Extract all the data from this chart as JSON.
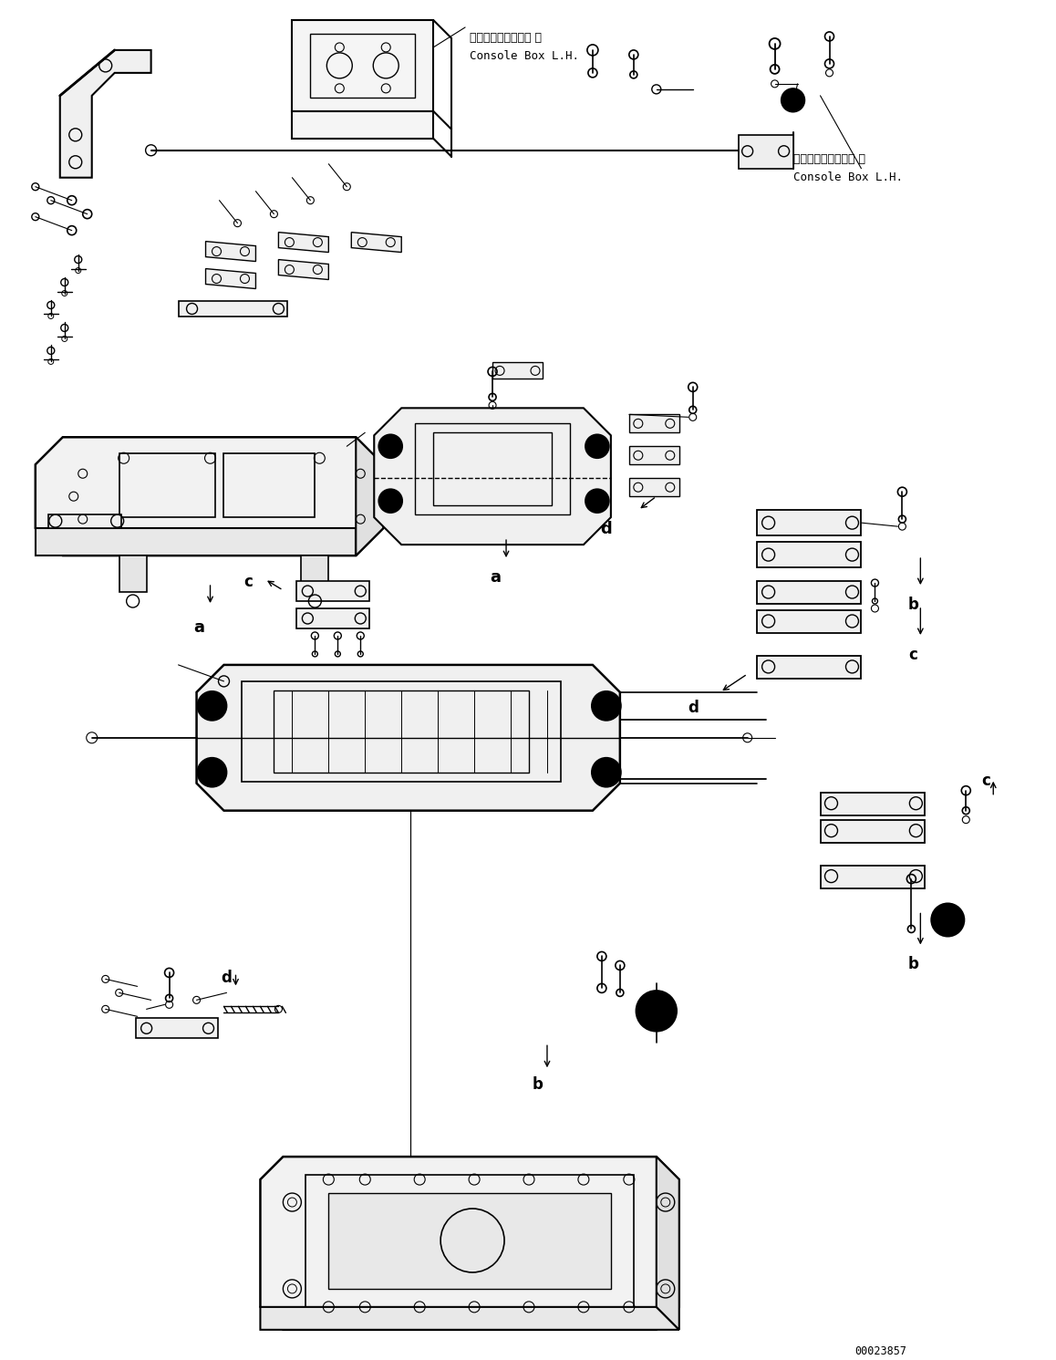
{
  "background_color": "#ffffff",
  "figure_width": 11.58,
  "figure_height": 14.91,
  "dpi": 100,
  "doc_number": "00023857",
  "label_top1_jp": "コンソールボックス 左",
  "label_top1_en": "Console Box L.H.",
  "label_top2_jp": "コンソールボックス 左",
  "label_top2_en": "Console Box L.H.",
  "label_a": "a",
  "label_b": "b",
  "label_c": "c",
  "label_d": "d"
}
